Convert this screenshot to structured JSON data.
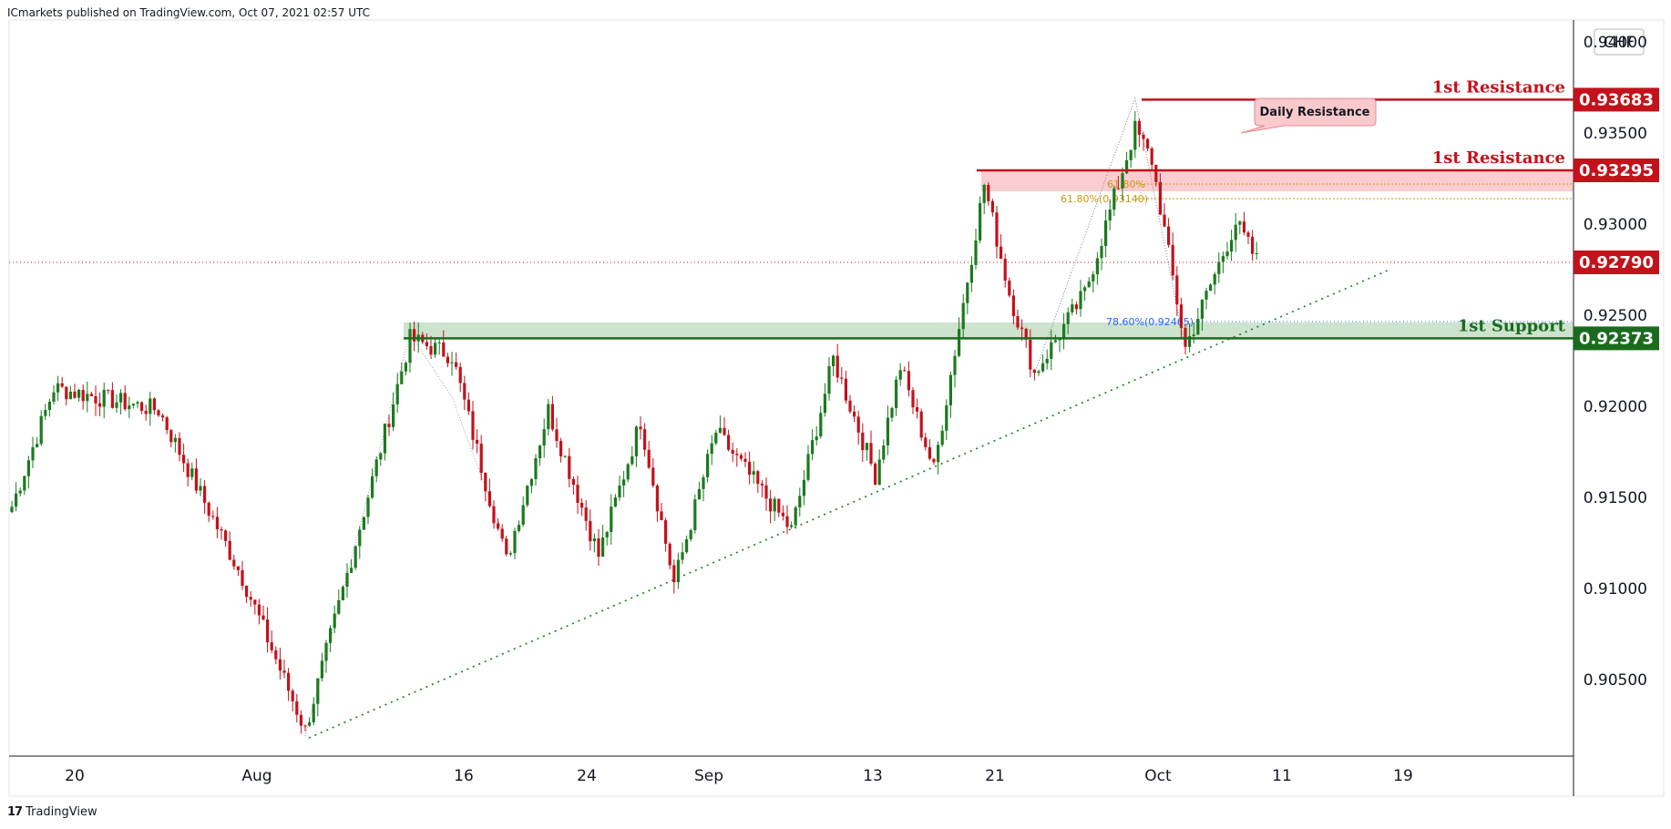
{
  "header": {
    "published": "ICmarkets published on TradingView.com, Oct 07, 2021 02:57 UTC"
  },
  "footer": {
    "brand": "TradingView",
    "logo": "tradingview-logo-icon"
  },
  "colors": {
    "up": "#1b7a1f",
    "down": "#c2121b",
    "resistance": "#c2121b",
    "support": "#1b6b1f",
    "fib_gold": "#c8960c",
    "fib_blue": "#2962ff"
  },
  "chart_data": {
    "type": "candlestick",
    "symbol_currency": "CHF",
    "y_ticks": [
      "0.94000",
      "0.93500",
      "0.93000",
      "0.92500",
      "0.92000",
      "0.91500",
      "0.91000",
      "0.90500"
    ],
    "x_ticks": [
      "20",
      "Aug",
      "16",
      "24",
      "Sep",
      "13",
      "21",
      "Oct",
      "11",
      "19"
    ],
    "ylim": [
      0.9008,
      0.9412
    ],
    "current_price": "0.92790",
    "levels": [
      {
        "label": "1st Resistance",
        "price": "0.93683",
        "kind": "resistance"
      },
      {
        "label": "1st Resistance",
        "price": "0.93295",
        "kind": "resistance"
      },
      {
        "label": "1st Support",
        "price": "0.92373",
        "kind": "support"
      }
    ],
    "callout": "Daily Resistance",
    "fib_labels": [
      {
        "text": "61.80%(0.93140)",
        "price": 0.9314
      },
      {
        "text": "61.80%",
        "price": 0.9322
      },
      {
        "text": "78.60%(0.92465)",
        "price": 0.92465
      }
    ],
    "path_anchors": [
      {
        "i": 0,
        "p": 0.9145
      },
      {
        "i": 10,
        "p": 0.921
      },
      {
        "i": 35,
        "p": 0.9198
      },
      {
        "i": 55,
        "p": 0.9106
      },
      {
        "i": 70,
        "p": 0.9022
      },
      {
        "i": 95,
        "p": 0.9237
      },
      {
        "i": 105,
        "p": 0.9228
      },
      {
        "i": 118,
        "p": 0.9115
      },
      {
        "i": 128,
        "p": 0.9198
      },
      {
        "i": 140,
        "p": 0.9118
      },
      {
        "i": 150,
        "p": 0.9192
      },
      {
        "i": 158,
        "p": 0.9103
      },
      {
        "i": 168,
        "p": 0.9186
      },
      {
        "i": 186,
        "p": 0.9132
      },
      {
        "i": 196,
        "p": 0.9226
      },
      {
        "i": 206,
        "p": 0.9162
      },
      {
        "i": 212,
        "p": 0.9222
      },
      {
        "i": 220,
        "p": 0.9165
      },
      {
        "i": 232,
        "p": 0.9322
      },
      {
        "i": 238,
        "p": 0.9262
      },
      {
        "i": 244,
        "p": 0.9218
      },
      {
        "i": 256,
        "p": 0.9262
      },
      {
        "i": 268,
        "p": 0.9352
      },
      {
        "i": 272,
        "p": 0.9335
      },
      {
        "i": 280,
        "p": 0.9232
      },
      {
        "i": 292,
        "p": 0.9301
      },
      {
        "i": 297,
        "p": 0.928
      }
    ],
    "n_candles": 298
  }
}
